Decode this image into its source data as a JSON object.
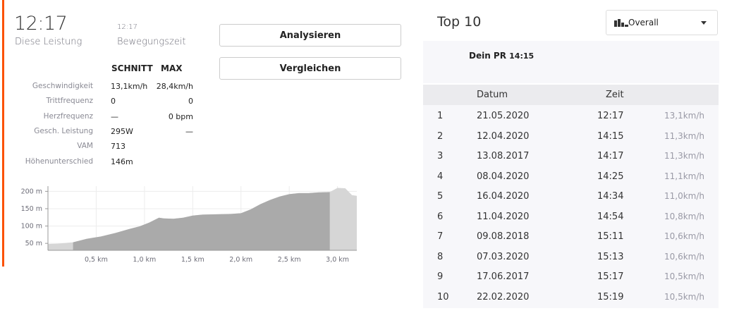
{
  "summary": {
    "elapsed_value": "12:17",
    "elapsed_label": "Diese Leistung",
    "moving_value": "12:17",
    "moving_label": "Bewegungszeit"
  },
  "buttons": {
    "analyze": "Analysieren",
    "compare": "Vergleichen"
  },
  "stats": {
    "header_avg": "SCHNITT",
    "header_max": "MAX",
    "rows": [
      {
        "label": "Geschwindigkeit",
        "avg": "13,1km/h",
        "max": "28,4km/h"
      },
      {
        "label": "Trittfrequenz",
        "avg": "0",
        "max": "0"
      },
      {
        "label": "Herzfrequenz",
        "avg": "—",
        "max": "0 bpm"
      },
      {
        "label": "Gesch. Leistung",
        "avg": "295W",
        "max": "—"
      },
      {
        "label": "VAM",
        "avg": "713",
        "max": ""
      },
      {
        "label": "Höhenunterschied",
        "avg": "146m",
        "max": ""
      }
    ]
  },
  "chart_data": {
    "type": "area",
    "title": "",
    "xlabel": "",
    "ylabel": "",
    "ylim": [
      30,
      215
    ],
    "xlim": [
      0,
      3.2
    ],
    "x_ticks": [
      "0,5 km",
      "1,0 km",
      "1,5 km",
      "2,0 km",
      "2,5 km",
      "3,0 km"
    ],
    "y_ticks": [
      "200 m",
      "150 m",
      "100 m",
      "50 m"
    ],
    "x_tick_values": [
      0.5,
      1.0,
      1.5,
      2.0,
      2.5,
      3.0
    ],
    "y_tick_values": [
      200,
      150,
      100,
      50
    ],
    "segment": [
      0.26,
      2.92
    ],
    "x": [
      0,
      0.1,
      0.26,
      0.4,
      0.55,
      0.7,
      0.85,
      0.95,
      1.05,
      1.15,
      1.2,
      1.3,
      1.4,
      1.5,
      1.6,
      1.75,
      1.9,
      2.0,
      2.1,
      2.2,
      2.3,
      2.4,
      2.5,
      2.6,
      2.7,
      2.8,
      2.92,
      3.0,
      3.08,
      3.15,
      3.2
    ],
    "y": [
      48,
      49,
      53,
      63,
      70,
      80,
      92,
      99,
      110,
      124,
      122,
      121,
      124,
      130,
      133,
      134,
      135,
      137,
      148,
      163,
      175,
      185,
      192,
      195,
      195,
      197,
      198,
      210,
      209,
      189,
      187
    ]
  },
  "top10": {
    "title": "Top 10",
    "filter": {
      "selected": "Overall",
      "icon": "bar-chart-icon"
    },
    "pr_label": "Dein PR",
    "pr_value": "14:15",
    "columns": {
      "date": "Datum",
      "time": "Zeit"
    },
    "rows": [
      {
        "rank": "1",
        "date": "21.05.2020",
        "time": "12:17",
        "speed": "13,1km/h"
      },
      {
        "rank": "2",
        "date": "12.04.2020",
        "time": "14:15",
        "speed": "11,3km/h"
      },
      {
        "rank": "3",
        "date": "13.08.2017",
        "time": "14:17",
        "speed": "11,3km/h"
      },
      {
        "rank": "4",
        "date": "08.04.2020",
        "time": "14:25",
        "speed": "11,1km/h"
      },
      {
        "rank": "5",
        "date": "16.04.2020",
        "time": "14:34",
        "speed": "11,0km/h"
      },
      {
        "rank": "6",
        "date": "11.04.2020",
        "time": "14:54",
        "speed": "10,8km/h"
      },
      {
        "rank": "7",
        "date": "09.08.2018",
        "time": "15:11",
        "speed": "10,6km/h"
      },
      {
        "rank": "8",
        "date": "07.03.2020",
        "time": "15:13",
        "speed": "10,6km/h"
      },
      {
        "rank": "9",
        "date": "17.06.2017",
        "time": "15:17",
        "speed": "10,5km/h"
      },
      {
        "rank": "10",
        "date": "22.02.2020",
        "time": "15:19",
        "speed": "10,5km/h"
      }
    ]
  },
  "colors": {
    "accent": "#fc5200",
    "segment_fill": "#aaaaaa",
    "profile_fill": "#d6d6d6"
  }
}
